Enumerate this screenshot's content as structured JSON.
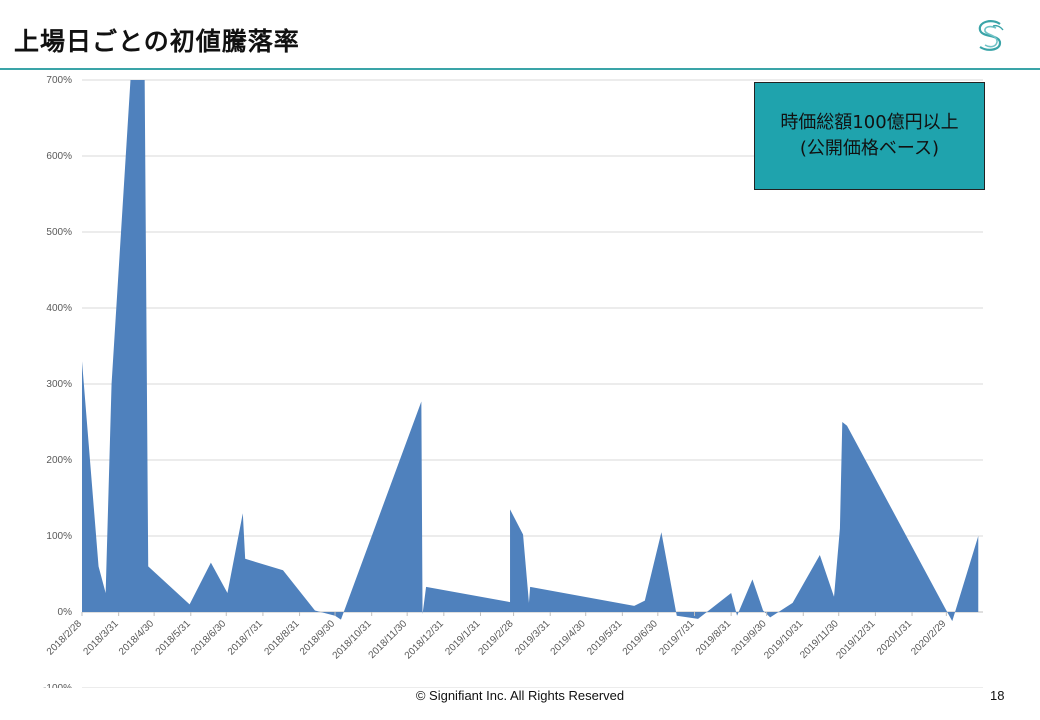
{
  "title": "上場日ごとの初値騰落率",
  "note": {
    "line1": "時価総額100億円以上",
    "line2": "(公開価格ベース)"
  },
  "footer": "© Signifiant Inc. All Rights Reserved",
  "page_number": "18",
  "colors": {
    "area": "#4f81bd",
    "grid": "#d9d9d9",
    "rule": "#3aa4a8",
    "note_bg": "#1fa3ad"
  },
  "chart_data": {
    "type": "area",
    "ylim": [
      -100,
      700
    ],
    "xlim": [
      "2018-02-28",
      "2020-03-31"
    ],
    "y_ticks": [
      -100,
      0,
      100,
      200,
      300,
      400,
      500,
      600,
      700
    ],
    "y_tick_labels": [
      "-100%",
      "0%",
      "100%",
      "200%",
      "300%",
      "400%",
      "500%",
      "600%",
      "700%"
    ],
    "x_ticks": [
      "2018-02-28",
      "2018-03-31",
      "2018-04-30",
      "2018-05-31",
      "2018-06-30",
      "2018-07-31",
      "2018-08-31",
      "2018-09-30",
      "2018-10-31",
      "2018-11-30",
      "2018-12-31",
      "2019-01-31",
      "2019-02-28",
      "2019-03-31",
      "2019-04-30",
      "2019-05-31",
      "2019-06-30",
      "2019-07-31",
      "2019-08-31",
      "2019-09-30",
      "2019-10-31",
      "2019-11-30",
      "2019-12-31",
      "2020-01-31",
      "2020-02-29"
    ],
    "x_tick_labels": [
      "2018/2/28",
      "2018/3/31",
      "2018/4/30",
      "2018/5/31",
      "2018/6/30",
      "2018/7/31",
      "2018/8/31",
      "2018/9/30",
      "2018/10/31",
      "2018/11/30",
      "2018/12/31",
      "2019/1/31",
      "2019/2/28",
      "2019/3/31",
      "2019/4/30",
      "2019/5/31",
      "2019/6/30",
      "2019/7/31",
      "2019/8/31",
      "2019/9/30",
      "2019/10/31",
      "2019/11/30",
      "2019/12/31",
      "2020/1/31",
      "2020/2/29"
    ],
    "x": [
      "2018-02-28",
      "2018-03-14",
      "2018-03-20",
      "2018-03-25",
      "2018-04-10",
      "2018-04-22",
      "2018-04-25",
      "2018-05-30",
      "2018-06-17",
      "2018-07-01",
      "2018-07-14",
      "2018-07-16",
      "2018-08-17",
      "2018-09-13",
      "2018-09-30",
      "2018-10-05",
      "2018-12-12",
      "2018-12-13",
      "2018-12-16",
      "2019-02-25",
      "2019-02-25",
      "2019-03-08",
      "2019-03-13",
      "2019-03-14",
      "2019-06-10",
      "2019-06-19",
      "2019-07-03",
      "2019-07-16",
      "2019-08-03",
      "2019-08-31",
      "2019-09-05",
      "2019-09-18",
      "2019-09-27",
      "2019-10-03",
      "2019-10-22",
      "2019-11-14",
      "2019-11-26",
      "2019-12-01",
      "2019-12-03",
      "2019-12-07",
      "2020-02-29",
      "2020-03-05",
      "2020-03-27"
    ],
    "y": [
      330,
      60,
      25,
      300,
      700,
      700,
      60,
      10,
      65,
      25,
      130,
      70,
      55,
      2,
      -5,
      -10,
      277,
      -3,
      33,
      13,
      135,
      102,
      12,
      33,
      8,
      15,
      105,
      -5,
      -9,
      25,
      -5,
      43,
      2,
      -7,
      12,
      75,
      20,
      110,
      250,
      245,
      2,
      -12,
      100
    ]
  }
}
